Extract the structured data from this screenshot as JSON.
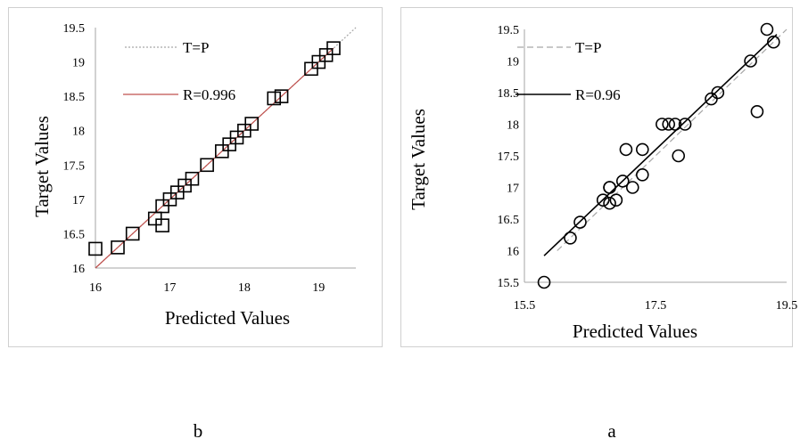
{
  "chart_data": [
    {
      "panel_label": "b",
      "type": "scatter",
      "xlabel": "Predicted Values",
      "ylabel": "Target Values",
      "xlim": [
        16,
        19.5
      ],
      "ylim": [
        16,
        19.5
      ],
      "x_ticks": [
        "16",
        "17",
        "18",
        "19"
      ],
      "y_ticks": [
        "16",
        "16.5",
        "17",
        "17.5",
        "18",
        "18.5",
        "19",
        "19.5"
      ],
      "marker": "square",
      "grid": false,
      "legend": [
        {
          "label": "T=P",
          "style": "dotted",
          "color": "#a6a6a6"
        },
        {
          "label": "R=0.996",
          "style": "solid",
          "color": "#c0504d"
        }
      ],
      "lines": [
        {
          "name": "T=P",
          "points": [
            [
              16,
              16
            ],
            [
              19.5,
              19.5
            ]
          ]
        },
        {
          "name": "R=0.996",
          "points": [
            [
              16,
              16
            ],
            [
              19.2,
              19.2
            ]
          ]
        }
      ],
      "points": [
        [
          16.0,
          16.28
        ],
        [
          16.3,
          16.3
        ],
        [
          16.5,
          16.5
        ],
        [
          16.8,
          16.72
        ],
        [
          16.9,
          16.62
        ],
        [
          16.9,
          16.9
        ],
        [
          17.0,
          17.0
        ],
        [
          17.1,
          17.1
        ],
        [
          17.2,
          17.2
        ],
        [
          17.3,
          17.3
        ],
        [
          17.5,
          17.5
        ],
        [
          17.7,
          17.7
        ],
        [
          17.8,
          17.8
        ],
        [
          17.9,
          17.9
        ],
        [
          18.0,
          18.0
        ],
        [
          18.1,
          18.1
        ],
        [
          18.4,
          18.47
        ],
        [
          18.5,
          18.5
        ],
        [
          18.9,
          18.9
        ],
        [
          19.0,
          19.0
        ],
        [
          19.1,
          19.1
        ],
        [
          19.2,
          19.2
        ]
      ]
    },
    {
      "panel_label": "a",
      "type": "scatter",
      "xlabel": "Predicted Values",
      "ylabel": "Target Values",
      "xlim": [
        15.5,
        19.5
      ],
      "ylim": [
        15.5,
        19.5
      ],
      "x_ticks": [
        "15.5",
        "17.5",
        "19.5"
      ],
      "x_tick_values": [
        15.5,
        17.5,
        19.5
      ],
      "y_ticks": [
        "15.5",
        "16",
        "16.5",
        "17",
        "17.5",
        "18",
        "18.5",
        "19",
        "19.5"
      ],
      "marker": "circle",
      "grid": false,
      "legend": [
        {
          "label": "T=P",
          "style": "dashed",
          "color": "#a6a6a6"
        },
        {
          "label": "R=0.96",
          "style": "solid",
          "color": "#000000"
        }
      ],
      "lines": [
        {
          "name": "T=P",
          "points": [
            [
              16.0,
              16.0
            ],
            [
              19.5,
              19.5
            ]
          ]
        },
        {
          "name": "R=0.96",
          "points": [
            [
              15.8,
              15.92
            ],
            [
              19.35,
              19.42
            ]
          ]
        }
      ],
      "points": [
        [
          15.8,
          15.5
        ],
        [
          16.2,
          16.2
        ],
        [
          16.35,
          16.45
        ],
        [
          16.7,
          16.8
        ],
        [
          16.8,
          16.75
        ],
        [
          16.8,
          17.0
        ],
        [
          16.8,
          17.0
        ],
        [
          16.9,
          16.8
        ],
        [
          17.0,
          17.1
        ],
        [
          17.05,
          17.6
        ],
        [
          17.15,
          17.0
        ],
        [
          17.3,
          17.6
        ],
        [
          17.3,
          17.2
        ],
        [
          17.6,
          18.0
        ],
        [
          17.7,
          18.0
        ],
        [
          17.8,
          18.0
        ],
        [
          17.85,
          17.5
        ],
        [
          17.95,
          18.0
        ],
        [
          18.35,
          18.4
        ],
        [
          18.45,
          18.5
        ],
        [
          18.95,
          19.0
        ],
        [
          19.05,
          18.2
        ],
        [
          19.2,
          19.5
        ],
        [
          19.3,
          19.3
        ]
      ]
    }
  ],
  "captions": {
    "left": "b",
    "right": "a"
  }
}
